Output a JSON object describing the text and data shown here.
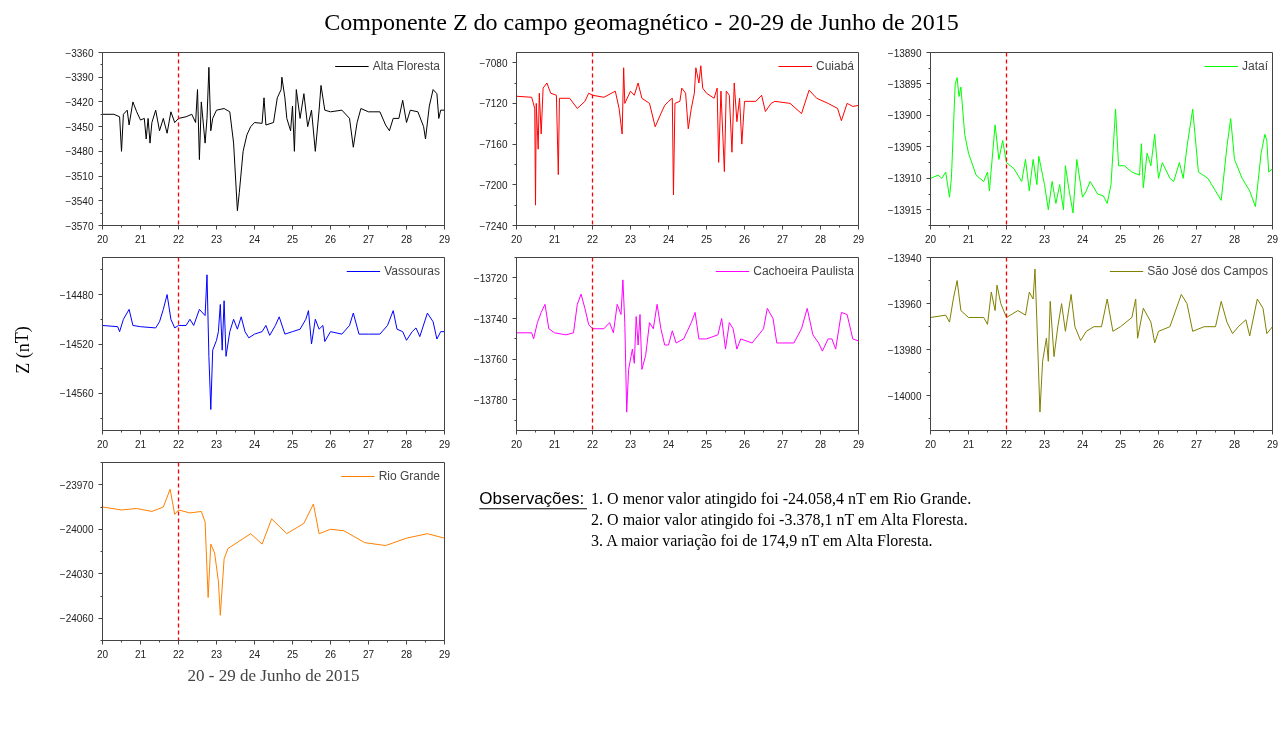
{
  "chart_data": [
    {
      "type": "other",
      "title": "Componente Z do campo geomagnético - 20-29 de Junho de 2015"
    },
    {
      "type": "line",
      "xlim": [
        20,
        29
      ],
      "xticks": [
        20,
        21,
        22,
        23,
        24,
        25,
        26,
        27,
        28,
        29
      ],
      "ylim": [
        -3570,
        -3360
      ],
      "yticks": [
        -3570,
        -3540,
        -3510,
        -3480,
        -3450,
        -3420,
        -3390,
        -3360
      ],
      "grid": false,
      "legend": "top right",
      "ref_lines": [
        {
          "axis": "x",
          "value": 22,
          "color": "#ff0000",
          "line_style": "dashed"
        }
      ],
      "series": [
        {
          "name": "Alta Floresta",
          "color": "#000000",
          "x": [
            20.0,
            20.3,
            20.45,
            20.5,
            20.55,
            20.65,
            20.7,
            20.8,
            20.9,
            21.0,
            21.1,
            21.15,
            21.2,
            21.25,
            21.3,
            21.4,
            21.5,
            21.6,
            21.7,
            21.8,
            21.9,
            22.0,
            22.2,
            22.35,
            22.45,
            22.5,
            22.55,
            22.6,
            22.7,
            22.75,
            22.8,
            22.85,
            22.9,
            23.0,
            23.2,
            23.35,
            23.45,
            23.55,
            23.6,
            23.7,
            23.8,
            23.9,
            24.0,
            24.2,
            24.25,
            24.3,
            24.5,
            24.6,
            24.7,
            24.72,
            24.8,
            24.85,
            24.95,
            25.0,
            25.05,
            25.1,
            25.2,
            25.3,
            25.4,
            25.5,
            25.6,
            25.7,
            25.75,
            25.85,
            26.0,
            26.3,
            26.5,
            26.6,
            26.7,
            26.8,
            27.0,
            27.3,
            27.45,
            27.55,
            27.65,
            27.8,
            27.9,
            28.0,
            28.1,
            28.3,
            28.45,
            28.5,
            28.6,
            28.7,
            28.8,
            28.85,
            28.9,
            29.0
          ],
          "values": [
            -3435,
            -3435,
            -3438,
            -3480,
            -3435,
            -3430,
            -3448,
            -3420,
            -3432,
            -3442,
            -3440,
            -3465,
            -3440,
            -3470,
            -3445,
            -3430,
            -3455,
            -3440,
            -3458,
            -3432,
            -3445,
            -3440,
            -3438,
            -3435,
            -3445,
            -3405,
            -3490,
            -3420,
            -3470,
            -3440,
            -3378,
            -3455,
            -3440,
            -3430,
            -3428,
            -3432,
            -3470,
            -3552,
            -3530,
            -3480,
            -3460,
            -3450,
            -3445,
            -3446,
            -3415,
            -3448,
            -3445,
            -3415,
            -3405,
            -3390,
            -3415,
            -3440,
            -3455,
            -3425,
            -3480,
            -3405,
            -3440,
            -3410,
            -3450,
            -3430,
            -3480,
            -3430,
            -3400,
            -3430,
            -3432,
            -3430,
            -3440,
            -3475,
            -3445,
            -3428,
            -3432,
            -3432,
            -3448,
            -3455,
            -3440,
            -3440,
            -3418,
            -3445,
            -3430,
            -3432,
            -3450,
            -3465,
            -3425,
            -3405,
            -3410,
            -3440,
            -3430,
            -3430
          ]
        }
      ]
    },
    {
      "type": "line",
      "xlim": [
        20,
        29
      ],
      "xticks": [
        20,
        21,
        22,
        23,
        24,
        25,
        26,
        27,
        28,
        29
      ],
      "ylim": [
        -7240,
        -7070
      ],
      "yticks": [
        -7240,
        -7200,
        -7160,
        -7120,
        -7080
      ],
      "grid": false,
      "legend": "top right",
      "ref_lines": [
        {
          "axis": "x",
          "value": 22,
          "color": "#ff0000",
          "line_style": "dashed"
        }
      ],
      "series": [
        {
          "name": "Cuiabá",
          "color": "#ff0000",
          "x": [
            20.0,
            20.4,
            20.48,
            20.5,
            20.52,
            20.57,
            20.6,
            20.65,
            20.7,
            20.8,
            20.9,
            21.05,
            21.1,
            21.13,
            21.4,
            21.6,
            21.8,
            21.9,
            22.0,
            22.3,
            22.6,
            22.7,
            22.78,
            22.82,
            22.85,
            23.0,
            23.1,
            23.2,
            23.3,
            23.5,
            23.65,
            23.8,
            23.9,
            24.0,
            24.1,
            24.13,
            24.17,
            24.3,
            24.35,
            24.45,
            24.52,
            24.6,
            24.68,
            24.72,
            24.8,
            24.85,
            24.9,
            25.0,
            25.2,
            25.28,
            25.32,
            25.38,
            25.47,
            25.52,
            25.6,
            25.67,
            25.73,
            25.8,
            25.87,
            25.93,
            26.0,
            26.3,
            26.45,
            26.55,
            26.7,
            26.8,
            27.2,
            27.5,
            27.7,
            27.9,
            28.2,
            28.45,
            28.55,
            28.7,
            28.85,
            29.0
          ],
          "values": [
            -7113,
            -7114,
            -7125,
            -7220,
            -7120,
            -7165,
            -7110,
            -7150,
            -7105,
            -7100,
            -7110,
            -7112,
            -7190,
            -7115,
            -7115,
            -7125,
            -7118,
            -7110,
            -7112,
            -7114,
            -7108,
            -7125,
            -7150,
            -7085,
            -7120,
            -7108,
            -7112,
            -7100,
            -7115,
            -7120,
            -7143,
            -7130,
            -7122,
            -7118,
            -7115,
            -7210,
            -7120,
            -7118,
            -7105,
            -7110,
            -7145,
            -7125,
            -7110,
            -7085,
            -7100,
            -7083,
            -7105,
            -7110,
            -7115,
            -7105,
            -7178,
            -7108,
            -7187,
            -7108,
            -7112,
            -7168,
            -7100,
            -7138,
            -7115,
            -7160,
            -7118,
            -7118,
            -7112,
            -7128,
            -7120,
            -7118,
            -7120,
            -7130,
            -7107,
            -7115,
            -7120,
            -7125,
            -7137,
            -7120,
            -7123,
            -7122
          ]
        }
      ]
    },
    {
      "type": "line",
      "xlim": [
        20,
        29
      ],
      "xticks": [
        20,
        21,
        22,
        23,
        24,
        25,
        26,
        27,
        28,
        29
      ],
      "ylim": [
        -13917.5,
        -13890
      ],
      "yticks": [
        -13915,
        -13910,
        -13905,
        -13900,
        -13895,
        -13890
      ],
      "grid": false,
      "legend": "top right",
      "ref_lines": [
        {
          "axis": "x",
          "value": 22,
          "color": "#ff0000",
          "line_style": "dashed"
        }
      ],
      "series": [
        {
          "name": "Jataí",
          "color": "#00ff00",
          "x": [
            20.0,
            20.2,
            20.3,
            20.4,
            20.5,
            20.55,
            20.65,
            20.7,
            20.75,
            20.8,
            20.9,
            21.0,
            21.2,
            21.4,
            21.5,
            21.55,
            21.7,
            21.8,
            21.9,
            22.0,
            22.2,
            22.4,
            22.5,
            22.6,
            22.7,
            22.8,
            22.85,
            23.0,
            23.1,
            23.2,
            23.3,
            23.4,
            23.5,
            23.55,
            23.65,
            23.75,
            23.85,
            24.0,
            24.1,
            24.2,
            24.4,
            24.55,
            24.65,
            24.75,
            24.87,
            24.95,
            25.1,
            25.3,
            25.5,
            25.55,
            25.6,
            25.7,
            25.8,
            25.9,
            26.0,
            26.1,
            26.3,
            26.4,
            26.55,
            26.65,
            26.75,
            26.9,
            27.05,
            27.3,
            27.5,
            27.65,
            27.8,
            27.9,
            28.0,
            28.2,
            28.4,
            28.55,
            28.7,
            28.8,
            28.85,
            28.9,
            29.0
          ],
          "values": [
            -13910,
            -13909.5,
            -13910,
            -13909,
            -13913,
            -13910,
            -13895,
            -13894,
            -13897,
            -13895.5,
            -13903,
            -13906,
            -13909.5,
            -13910.5,
            -13909,
            -13912,
            -13901.5,
            -13907,
            -13904,
            -13907.5,
            -13908.5,
            -13910.5,
            -13907,
            -13912,
            -13907,
            -13911,
            -13906.5,
            -13911,
            -13915,
            -13910.5,
            -13914,
            -13911,
            -13915,
            -13908,
            -13912,
            -13915.5,
            -13907,
            -13913,
            -13912,
            -13910.5,
            -13912.5,
            -13912.8,
            -13914,
            -13911,
            -13899,
            -13908,
            -13908,
            -13909,
            -13909.5,
            -13904.5,
            -13911.5,
            -13906,
            -13908,
            -13903,
            -13910,
            -13907.5,
            -13910,
            -13910.5,
            -13907.5,
            -13910,
            -13905,
            -13899,
            -13909,
            -13910,
            -13912,
            -13913.5,
            -13905,
            -13900.5,
            -13907,
            -13910,
            -13912,
            -13914.5,
            -13906,
            -13903,
            -13904,
            -13909,
            -13908.5
          ]
        }
      ]
    },
    {
      "type": "line",
      "xlim": [
        20,
        29
      ],
      "xticks": [
        20,
        21,
        22,
        23,
        24,
        25,
        26,
        27,
        28,
        29
      ],
      "ylim": [
        -14590,
        -14450
      ],
      "yticks": [
        -14560,
        -14520,
        -14480
      ],
      "grid": false,
      "legend": "top right",
      "ylabel": "Z (nT)",
      "ref_lines": [
        {
          "axis": "x",
          "value": 22,
          "color": "#ff0000",
          "line_style": "dashed"
        }
      ],
      "series": [
        {
          "name": "Vassouras",
          "color": "#0000ff",
          "x": [
            20.0,
            20.4,
            20.45,
            20.55,
            20.7,
            20.8,
            21.0,
            21.4,
            21.5,
            21.6,
            21.7,
            21.8,
            21.9,
            22.0,
            22.2,
            22.3,
            22.4,
            22.55,
            22.7,
            22.75,
            22.8,
            22.85,
            22.9,
            23.0,
            23.05,
            23.1,
            23.15,
            23.2,
            23.25,
            23.35,
            23.45,
            23.55,
            23.65,
            23.75,
            23.85,
            24.0,
            24.2,
            24.3,
            24.4,
            24.55,
            24.65,
            24.8,
            25.0,
            25.2,
            25.35,
            25.42,
            25.5,
            25.6,
            25.7,
            25.8,
            25.85,
            26.0,
            26.3,
            26.5,
            26.6,
            26.75,
            27.0,
            27.3,
            27.5,
            27.65,
            27.75,
            27.9,
            28.0,
            28.15,
            28.25,
            28.35,
            28.55,
            28.7,
            28.8,
            28.9,
            29.0
          ],
          "values": [
            -14505,
            -14506,
            -14510,
            -14500,
            -14492,
            -14505,
            -14506,
            -14507,
            -14502,
            -14492,
            -14480,
            -14500,
            -14507,
            -14505,
            -14505,
            -14500,
            -14505,
            -14492,
            -14497,
            -14464,
            -14530,
            -14573,
            -14525,
            -14517,
            -14510,
            -14488,
            -14525,
            -14485,
            -14530,
            -14510,
            -14500,
            -14508,
            -14498,
            -14510,
            -14515,
            -14512,
            -14510,
            -14505,
            -14513,
            -14505,
            -14498,
            -14512,
            -14510,
            -14508,
            -14500,
            -14493,
            -14520,
            -14500,
            -14508,
            -14505,
            -14518,
            -14510,
            -14512,
            -14505,
            -14495,
            -14512,
            -14512,
            -14512,
            -14505,
            -14493,
            -14508,
            -14510,
            -14517,
            -14510,
            -14507,
            -14514,
            -14495,
            -14502,
            -14516,
            -14510,
            -14510
          ]
        }
      ]
    },
    {
      "type": "line",
      "xlim": [
        20,
        29
      ],
      "xticks": [
        20,
        21,
        22,
        23,
        24,
        25,
        26,
        27,
        28,
        29
      ],
      "ylim": [
        -13795,
        -13710
      ],
      "yticks": [
        -13780,
        -13760,
        -13740,
        -13720
      ],
      "grid": false,
      "legend": "top right",
      "ref_lines": [
        {
          "axis": "x",
          "value": 22,
          "color": "#ff0000",
          "line_style": "dashed"
        }
      ],
      "series": [
        {
          "name": "Cachoeira Paulista",
          "color": "#ff00ff",
          "x": [
            20.0,
            20.4,
            20.45,
            20.55,
            20.65,
            20.75,
            20.85,
            21.0,
            21.3,
            21.5,
            21.6,
            21.7,
            21.8,
            21.9,
            22.0,
            22.3,
            22.45,
            22.55,
            22.65,
            22.75,
            22.8,
            22.85,
            22.9,
            22.95,
            23.05,
            23.1,
            23.15,
            23.2,
            23.25,
            23.3,
            23.4,
            23.5,
            23.6,
            23.7,
            23.8,
            23.9,
            24.0,
            24.1,
            24.2,
            24.4,
            24.6,
            24.7,
            24.8,
            25.0,
            25.3,
            25.4,
            25.5,
            25.6,
            25.7,
            25.8,
            25.9,
            26.2,
            26.5,
            26.6,
            26.75,
            26.85,
            27.0,
            27.3,
            27.5,
            27.65,
            27.8,
            27.95,
            28.05,
            28.2,
            28.3,
            28.4,
            28.55,
            28.7,
            28.85,
            29.0
          ],
          "values": [
            -13747,
            -13747,
            -13750,
            -13742,
            -13737,
            -13733,
            -13745,
            -13747,
            -13748,
            -13747,
            -13733,
            -13728,
            -13735,
            -13743,
            -13745,
            -13745,
            -13742,
            -13747,
            -13733,
            -13738,
            -13721,
            -13742,
            -13786,
            -13765,
            -13755,
            -13762,
            -13739,
            -13753,
            -13738,
            -13765,
            -13758,
            -13742,
            -13745,
            -13733,
            -13745,
            -13753,
            -13753,
            -13746,
            -13752,
            -13750,
            -13742,
            -13737,
            -13750,
            -13750,
            -13748,
            -13740,
            -13755,
            -13742,
            -13745,
            -13755,
            -13750,
            -13752,
            -13745,
            -13735,
            -13740,
            -13752,
            -13752,
            -13752,
            -13745,
            -13735,
            -13748,
            -13752,
            -13756,
            -13750,
            -13750,
            -13755,
            -13737,
            -13738,
            -13750,
            -13751
          ]
        }
      ]
    },
    {
      "type": "line",
      "xlim": [
        20,
        29
      ],
      "xticks": [
        20,
        21,
        22,
        23,
        24,
        25,
        26,
        27,
        28,
        29
      ],
      "ylim": [
        -14015,
        -13940
      ],
      "yticks": [
        -14000,
        -13980,
        -13960,
        -13940
      ],
      "grid": false,
      "legend": "top right",
      "ref_lines": [
        {
          "axis": "x",
          "value": 22,
          "color": "#ff0000",
          "line_style": "dashed"
        }
      ],
      "series": [
        {
          "name": "São José dos Campos",
          "color": "#808000",
          "x": [
            20.0,
            20.4,
            20.5,
            20.6,
            20.7,
            20.8,
            21.0,
            21.4,
            21.5,
            21.6,
            21.7,
            21.75,
            21.85,
            22.0,
            22.3,
            22.5,
            22.6,
            22.7,
            22.75,
            22.8,
            22.88,
            22.95,
            23.05,
            23.1,
            23.15,
            23.25,
            23.35,
            23.45,
            23.55,
            23.7,
            23.8,
            23.95,
            24.1,
            24.3,
            24.5,
            24.65,
            24.8,
            25.0,
            25.3,
            25.4,
            25.45,
            25.6,
            25.8,
            25.9,
            26.0,
            26.3,
            26.6,
            26.75,
            26.9,
            27.2,
            27.5,
            27.65,
            27.8,
            27.95,
            28.1,
            28.3,
            28.4,
            28.6,
            28.75,
            28.85,
            29.0
          ],
          "values": [
            -13966,
            -13965,
            -13968,
            -13958,
            -13950,
            -13963,
            -13966,
            -13966,
            -13969,
            -13955,
            -13963,
            -13952,
            -13960,
            -13966,
            -13963,
            -13965,
            -13955,
            -13958,
            -13945,
            -13968,
            -14007,
            -13985,
            -13975,
            -13985,
            -13959,
            -13983,
            -13970,
            -13960,
            -13972,
            -13956,
            -13970,
            -13976,
            -13972,
            -13970,
            -13970,
            -13958,
            -13972,
            -13970,
            -13966,
            -13958,
            -13975,
            -13962,
            -13968,
            -13977,
            -13972,
            -13970,
            -13956,
            -13960,
            -13972,
            -13970,
            -13970,
            -13959,
            -13968,
            -13973,
            -13970,
            -13967,
            -13974,
            -13958,
            -13962,
            -13973,
            -13970
          ]
        }
      ]
    },
    {
      "type": "line",
      "xlim": [
        20,
        29
      ],
      "xticks": [
        20,
        21,
        22,
        23,
        24,
        25,
        26,
        27,
        28,
        29
      ],
      "ylim": [
        -24075,
        -23955
      ],
      "yticks": [
        -24060,
        -24030,
        -24000,
        -23970
      ],
      "grid": false,
      "legend": "top right",
      "xlabel": "20 - 29 de Junho de 2015",
      "ref_lines": [
        {
          "axis": "x",
          "value": 22,
          "color": "#ff0000",
          "line_style": "dashed"
        }
      ],
      "series": [
        {
          "name": "Rio Grande",
          "color": "#ff8000",
          "x": [
            20.0,
            20.5,
            20.9,
            21.3,
            21.6,
            21.78,
            21.9,
            22.0,
            22.3,
            22.6,
            22.7,
            22.78,
            22.85,
            22.95,
            23.05,
            23.1,
            23.2,
            23.3,
            23.6,
            23.9,
            24.2,
            24.45,
            24.85,
            25.3,
            25.55,
            25.7,
            26.0,
            26.35,
            26.9,
            27.45,
            28.0,
            28.55,
            29.0
          ],
          "values": [
            -23985,
            -23987,
            -23986,
            -23988,
            -23985,
            -23973,
            -23990,
            -23987,
            -23989,
            -23988,
            -23995,
            -24046,
            -24010,
            -24016,
            -24035,
            -24058,
            -24020,
            -24013,
            -24008,
            -24003,
            -24010,
            -23993,
            -24003,
            -23996,
            -23983,
            -24003,
            -24000,
            -24001,
            -24009,
            -24011,
            -24006,
            -24003,
            -24006
          ]
        }
      ]
    },
    {
      "type": "other",
      "annotations": [
        "Observações:",
        "1.   O menor valor atingido foi -24.058,4 nT em Rio Grande.",
        "2.   O maior valor atingido foi -3.378,1 nT em Alta Floresta.",
        "3.   A maior variação foi de 174,9 nT em Alta Floresta."
      ]
    }
  ]
}
